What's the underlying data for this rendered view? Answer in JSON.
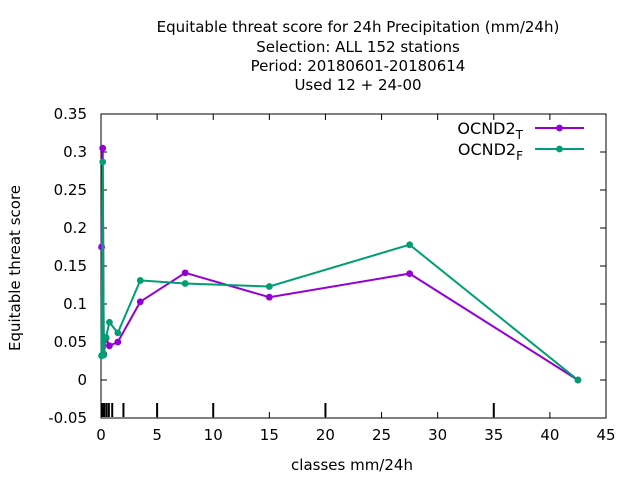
{
  "chart_data": {
    "type": "line",
    "title_lines": [
      "Equitable threat score  for 24h Precipitation (mm/24h)",
      "Selection: ALL    152 stations",
      "Period: 20180601-20180614",
      "Used  12 + 24-00"
    ],
    "xlabel": "classes mm/24h",
    "ylabel": "Equitable threat score",
    "xlim": [
      0,
      45
    ],
    "ylim": [
      -0.05,
      0.35
    ],
    "xticks": [
      "0",
      "5",
      "10",
      "15",
      "20",
      "25",
      "30",
      "35",
      "40",
      "45"
    ],
    "yticks": [
      "-0.05",
      "0",
      "0.05",
      "0.1",
      "0.15",
      "0.2",
      "0.25",
      "0.3",
      "0.35"
    ],
    "class_marks": [
      0.1,
      0.2,
      0.3,
      0.5,
      0.7,
      1.0,
      2.0,
      5.0,
      10.0,
      20.0,
      35.0
    ],
    "legend_position": "top-right",
    "series": [
      {
        "name": "OCND2",
        "subscript": "T",
        "color": "#9400d3",
        "x": [
          0.05,
          0.15,
          0.25,
          0.45,
          0.75,
          1.5,
          3.5,
          7.5,
          15.0,
          27.5,
          42.5
        ],
        "y": [
          0.175,
          0.305,
          0.034,
          0.055,
          0.045,
          0.05,
          0.103,
          0.141,
          0.109,
          0.14,
          0.0
        ]
      },
      {
        "name": "OCND2",
        "subscript": "F",
        "color": "#009e73",
        "x": [
          0.05,
          0.15,
          0.25,
          0.45,
          0.75,
          1.5,
          3.5,
          7.5,
          15.0,
          27.5,
          42.5
        ],
        "y": [
          0.032,
          0.287,
          0.033,
          0.056,
          0.076,
          0.062,
          0.131,
          0.127,
          0.123,
          0.178,
          0.0
        ]
      }
    ]
  }
}
